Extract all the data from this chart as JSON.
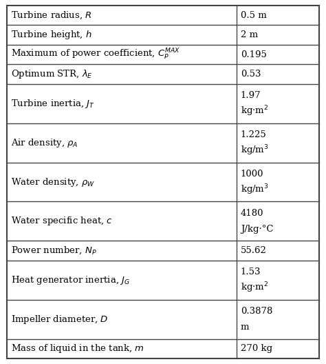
{
  "rows": [
    {
      "param": "Turbine radius, $R$",
      "value1": "0.5 m",
      "value2": "",
      "tall": false
    },
    {
      "param": "Turbine height, $h$",
      "value1": "2 m",
      "value2": "",
      "tall": false
    },
    {
      "param": "Maximum of power coefficient, $C_P^{MAX}$",
      "value1": "0.195",
      "value2": "",
      "tall": false
    },
    {
      "param": "Optimum STR, $\\lambda_E$",
      "value1": "0.53",
      "value2": "",
      "tall": false
    },
    {
      "param": "Turbine inertia, $J_T$",
      "value1": "1.97",
      "value2": "kg·m$^2$",
      "tall": true
    },
    {
      "param": "Air density, $\\rho_A$",
      "value1": "1.225",
      "value2": "kg/m$^3$",
      "tall": true
    },
    {
      "param": "Water density, $\\rho_W$",
      "value1": "1000",
      "value2": "kg/m$^3$",
      "tall": true
    },
    {
      "param": "Water specific heat, $c$",
      "value1": "4180",
      "value2": "J/kg·°C",
      "tall": true
    },
    {
      "param": "Power number, $N_P$",
      "value1": "55.62",
      "value2": "",
      "tall": false
    },
    {
      "param": "Heat generator inertia, $J_G$",
      "value1": "1.53",
      "value2": "kg·m$^2$",
      "tall": true
    },
    {
      "param": "Impeller diameter, $D$",
      "value1": "0.3878",
      "value2": "m",
      "tall": true
    },
    {
      "param": "Mass of liquid in the tank, $m$",
      "value1": "270 kg",
      "value2": "",
      "tall": false
    }
  ],
  "col_split": 0.735,
  "font_size": 9.5,
  "border_color": "#444444",
  "line_color": "#666666"
}
